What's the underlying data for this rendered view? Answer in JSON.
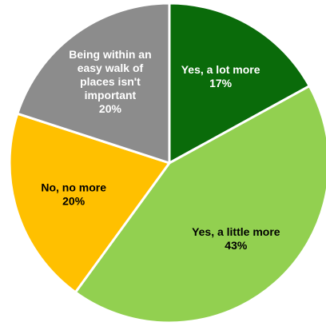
{
  "chart_data": {
    "type": "pie",
    "title": "",
    "slices": [
      {
        "label_lines": [
          "Yes, a lot more"
        ],
        "value_text": "17%",
        "value": 17,
        "color": "#0a6b0a",
        "text_color": "#ffffff"
      },
      {
        "label_lines": [
          "Yes, a little more"
        ],
        "value_text": "43%",
        "value": 43,
        "color": "#92d050",
        "text_color": "#000000"
      },
      {
        "label_lines": [
          "No, no more"
        ],
        "value_text": "20%",
        "value": 20,
        "color": "#ffc000",
        "text_color": "#000000"
      },
      {
        "label_lines": [
          "Being within an",
          "easy walk of",
          "places isn't",
          "important"
        ],
        "value_text": "20%",
        "value": 20,
        "color": "#8c8c8c",
        "text_color": "#ffffff"
      }
    ],
    "start_angle_deg": 0,
    "direction": "clockwise",
    "legend": "none",
    "grid": false
  }
}
